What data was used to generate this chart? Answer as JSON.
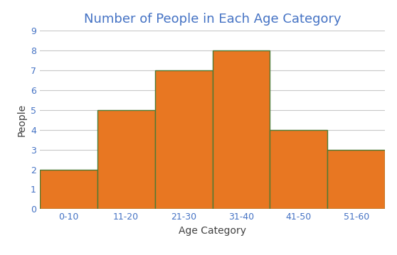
{
  "categories": [
    "0-10",
    "11-20",
    "21-30",
    "31-40",
    "41-50",
    "51-60"
  ],
  "values": [
    2,
    5,
    7,
    8,
    4,
    3
  ],
  "bar_color": "#E87722",
  "bar_edge_color": "#4C7A34",
  "bar_edge_width": 1.0,
  "title": "Number of People in Each Age Category",
  "title_fontsize": 13,
  "title_color": "#4472C4",
  "xlabel": "Age Category",
  "ylabel": "People",
  "xlabel_fontsize": 10,
  "ylabel_fontsize": 10,
  "xlabel_color": "#404040",
  "ylabel_color": "#404040",
  "tick_color": "#4472C4",
  "tick_fontsize": 9,
  "ylim": [
    0,
    9
  ],
  "yticks": [
    0,
    1,
    2,
    3,
    4,
    5,
    6,
    7,
    8,
    9
  ],
  "grid_color": "#C8C8C8",
  "grid_linewidth": 0.8,
  "background_color": "#FFFFFF"
}
